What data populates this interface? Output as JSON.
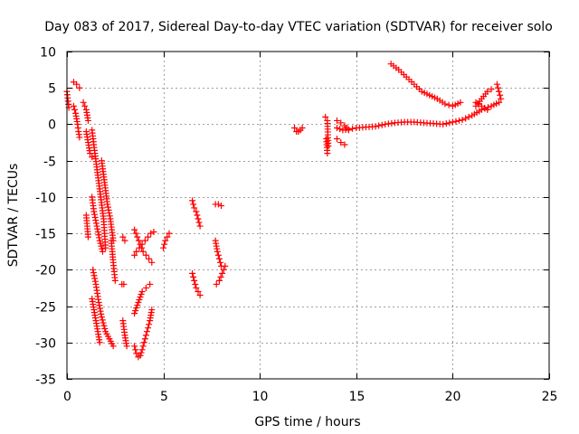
{
  "chart_data": {
    "type": "scatter",
    "title": "Day 083 of 2017, Sidereal Day-to-day VTEC variation (SDTVAR) for receiver solo",
    "xlabel": "GPS time / hours",
    "ylabel": "SDTVAR / TECUs",
    "xlim": [
      0,
      25
    ],
    "ylim": [
      -35,
      10
    ],
    "xticks": [
      0,
      5,
      10,
      15,
      20,
      25
    ],
    "yticks": [
      10,
      5,
      0,
      -5,
      -10,
      -15,
      -20,
      -25,
      -30,
      -35
    ],
    "grid": true,
    "marker": "+",
    "color": "#ff0000",
    "series": [
      {
        "name": "s1",
        "x": [
          0.0,
          0.1
        ],
        "y": [
          4.5,
          2.3
        ]
      },
      {
        "name": "s2",
        "x": [
          0.35,
          0.5,
          0.65
        ],
        "y": [
          5.8,
          5.5,
          5.0
        ]
      },
      {
        "name": "s3",
        "x": [
          0.35,
          0.45,
          0.55,
          0.6,
          0.65
        ],
        "y": [
          2.5,
          1.5,
          0.0,
          -1.0,
          -1.8
        ]
      },
      {
        "name": "s4",
        "x": [
          0.85,
          1.0,
          1.1
        ],
        "y": [
          3.0,
          2.0,
          0.5
        ]
      },
      {
        "name": "s5",
        "x": [
          1.0,
          1.1,
          1.2,
          1.3
        ],
        "y": [
          -1.0,
          -2.5,
          -4.0,
          -4.5
        ]
      },
      {
        "name": "s6",
        "x": [
          1.3,
          1.45,
          1.6,
          1.75,
          1.9,
          2.0
        ],
        "y": [
          -0.8,
          -4.0,
          -7.0,
          -10.0,
          -13.0,
          -17.0
        ]
      },
      {
        "name": "s7",
        "x": [
          1.8,
          1.95,
          2.1,
          2.25,
          2.4
        ],
        "y": [
          -5.0,
          -8.0,
          -11.0,
          -13.0,
          -16.0
        ]
      },
      {
        "name": "s8",
        "x": [
          2.3,
          2.4,
          2.5
        ],
        "y": [
          -16.0,
          -19.0,
          -21.5
        ]
      },
      {
        "name": "s9",
        "x": [
          1.0,
          1.1
        ],
        "y": [
          -12.5,
          -15.5
        ]
      },
      {
        "name": "s10",
        "x": [
          1.3,
          1.4,
          1.55,
          1.7,
          1.85
        ],
        "y": [
          -10.0,
          -12.0,
          -14.0,
          -16.0,
          -17.5
        ]
      },
      {
        "name": "s11",
        "x": [
          1.35,
          1.5,
          1.65,
          1.8,
          2.0,
          2.2,
          2.4
        ],
        "y": [
          -20.0,
          -22.0,
          -24.5,
          -26.5,
          -28.5,
          -29.5,
          -30.5
        ]
      },
      {
        "name": "s12",
        "x": [
          1.3,
          1.4,
          1.5,
          1.6,
          1.7
        ],
        "y": [
          -24.0,
          -25.5,
          -27.0,
          -28.5,
          -30.0
        ]
      },
      {
        "name": "s13",
        "x": [
          2.9,
          3.0
        ],
        "y": [
          -15.5,
          -16.0
        ]
      },
      {
        "name": "s14",
        "x": [
          2.85,
          2.95
        ],
        "y": [
          -22.0,
          -22.0
        ]
      },
      {
        "name": "s15",
        "x": [
          2.9,
          3.0,
          3.1
        ],
        "y": [
          -27.0,
          -29.0,
          -30.5
        ]
      },
      {
        "name": "s16",
        "x": [
          3.5,
          3.6,
          3.7,
          3.8,
          3.9,
          4.0,
          4.1,
          4.2,
          4.3,
          4.4
        ],
        "y": [
          -30.5,
          -31.5,
          -32.0,
          -31.8,
          -31.0,
          -30.0,
          -29.0,
          -28.0,
          -27.0,
          -25.5
        ]
      },
      {
        "name": "s17",
        "x": [
          3.5,
          3.6,
          3.75,
          3.9,
          4.05,
          4.2,
          4.35,
          4.5
        ],
        "y": [
          -18.0,
          -17.5,
          -17.0,
          -16.5,
          -16.0,
          -15.5,
          -15.0,
          -14.8
        ]
      },
      {
        "name": "s18",
        "x": [
          3.5,
          3.65,
          3.8,
          3.95,
          4.1,
          4.25,
          4.4
        ],
        "y": [
          -14.5,
          -15.5,
          -16.5,
          -17.5,
          -18.0,
          -18.5,
          -19.0
        ]
      },
      {
        "name": "s19",
        "x": [
          3.5,
          3.7,
          3.9,
          4.1,
          4.3
        ],
        "y": [
          -26.0,
          -24.5,
          -23.0,
          -22.5,
          -22.0
        ]
      },
      {
        "name": "s20",
        "x": [
          5.0,
          5.1,
          5.2,
          5.3
        ],
        "y": [
          -17.0,
          -16.0,
          -15.5,
          -15.0
        ]
      },
      {
        "name": "s21",
        "x": [
          6.5,
          6.6,
          6.7,
          6.8,
          6.9
        ],
        "y": [
          -10.5,
          -11.5,
          -12.0,
          -13.0,
          -14.0
        ]
      },
      {
        "name": "s22",
        "x": [
          6.5,
          6.6,
          6.7,
          6.8,
          6.9
        ],
        "y": [
          -20.5,
          -21.5,
          -22.5,
          -23.0,
          -23.5
        ]
      },
      {
        "name": "s23",
        "x": [
          7.7,
          7.85,
          8.0
        ],
        "y": [
          -11.0,
          -11.0,
          -11.2
        ]
      },
      {
        "name": "s24",
        "x": [
          7.7,
          7.8,
          7.9,
          8.0
        ],
        "y": [
          -16.0,
          -17.5,
          -18.5,
          -19.5
        ]
      },
      {
        "name": "s25",
        "x": [
          7.75,
          7.9,
          8.05,
          8.2
        ],
        "y": [
          -22.0,
          -21.5,
          -20.5,
          -19.5
        ]
      },
      {
        "name": "s26",
        "x": [
          11.8,
          11.9,
          12.0,
          12.1,
          12.2
        ],
        "y": [
          -0.5,
          -1.0,
          -1.0,
          -0.8,
          -0.5
        ]
      },
      {
        "name": "s27",
        "x": [
          13.4,
          13.5,
          13.55
        ],
        "y": [
          1.0,
          0.5,
          -3.0
        ]
      },
      {
        "name": "s28",
        "x": [
          13.45,
          13.5
        ],
        "y": [
          -2.0,
          -4.0
        ]
      },
      {
        "name": "s29",
        "x": [
          14.0,
          14.3,
          14.6,
          15.0,
          15.5,
          16.0,
          16.5,
          17.0,
          17.5,
          18.0,
          18.5,
          19.0,
          19.5,
          20.0,
          20.5,
          21.0,
          21.5,
          22.0,
          22.4
        ],
        "y": [
          -0.5,
          -0.8,
          -0.7,
          -0.5,
          -0.4,
          -0.3,
          0.0,
          0.2,
          0.3,
          0.3,
          0.2,
          0.1,
          0.0,
          0.3,
          0.6,
          1.2,
          2.0,
          2.5,
          3.0
        ]
      },
      {
        "name": "s30",
        "x": [
          14.0,
          14.2,
          14.4,
          14.6
        ],
        "y": [
          0.5,
          0.2,
          -0.2,
          -0.8
        ]
      },
      {
        "name": "s31",
        "x": [
          14.0,
          14.2,
          14.4
        ],
        "y": [
          -2.0,
          -2.5,
          -2.8
        ]
      },
      {
        "name": "s32",
        "x": [
          16.8,
          17.2,
          17.6,
          18.0,
          18.4,
          18.8,
          19.2,
          19.6,
          20.0,
          20.4
        ],
        "y": [
          8.3,
          7.5,
          6.5,
          5.5,
          4.5,
          4.0,
          3.5,
          2.8,
          2.5,
          3.0
        ]
      },
      {
        "name": "s33",
        "x": [
          21.2,
          21.5,
          21.8,
          22.0
        ],
        "y": [
          2.5,
          3.5,
          4.5,
          4.8
        ]
      },
      {
        "name": "s34",
        "x": [
          21.2,
          21.5,
          21.8
        ],
        "y": [
          3.0,
          2.5,
          2.0
        ]
      },
      {
        "name": "s35",
        "x": [
          22.3,
          22.4,
          22.5
        ],
        "y": [
          5.5,
          4.5,
          3.5
        ]
      }
    ]
  }
}
